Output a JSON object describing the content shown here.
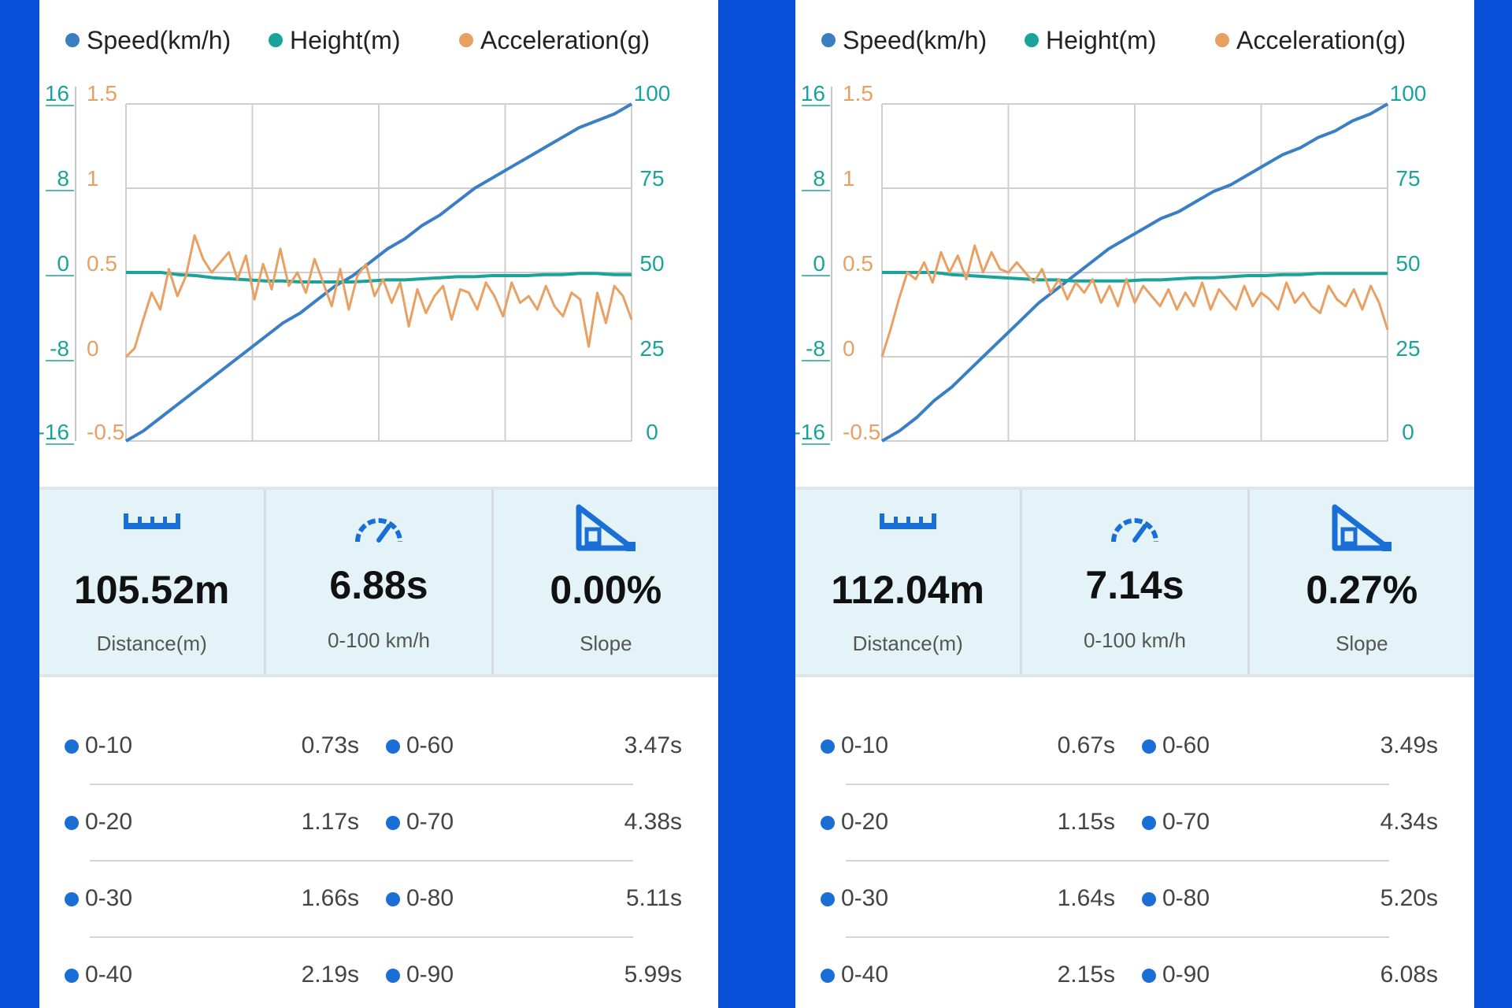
{
  "colors": {
    "background": "#0a4fd8",
    "speed": "#3a7fc4",
    "height": "#1aa39a",
    "acceleration": "#e8a063",
    "icon": "#1a6fd6",
    "stats_bg": "#e3f3f7"
  },
  "panels": [
    {
      "legend": {
        "speed": "Speed(km/h)",
        "height": "Height(m)",
        "acceleration": "Acceleration(g)"
      },
      "stats": {
        "distance_value": "105.52m",
        "distance_label": "Distance(m)",
        "time_value": "6.88s",
        "time_label": "0-100 km/h",
        "slope_value": "0.00%",
        "slope_label": "Slope"
      },
      "splits": [
        {
          "left_range": "0-10",
          "left_time": "0.73s",
          "right_range": "0-60",
          "right_time": "3.47s"
        },
        {
          "left_range": "0-20",
          "left_time": "1.17s",
          "right_range": "0-70",
          "right_time": "4.38s"
        },
        {
          "left_range": "0-30",
          "left_time": "1.66s",
          "right_range": "0-80",
          "right_time": "5.11s"
        },
        {
          "left_range": "0-40",
          "left_time": "2.19s",
          "right_range": "0-90",
          "right_time": "5.99s"
        }
      ]
    },
    {
      "legend": {
        "speed": "Speed(km/h)",
        "height": "Height(m)",
        "acceleration": "Acceleration(g)"
      },
      "stats": {
        "distance_value": "112.04m",
        "distance_label": "Distance(m)",
        "time_value": "7.14s",
        "time_label": "0-100 km/h",
        "slope_value": "0.27%",
        "slope_label": "Slope"
      },
      "splits": [
        {
          "left_range": "0-10",
          "left_time": "0.67s",
          "right_range": "0-60",
          "right_time": "3.49s"
        },
        {
          "left_range": "0-20",
          "left_time": "1.15s",
          "right_range": "0-70",
          "right_time": "4.34s"
        },
        {
          "left_range": "0-30",
          "left_time": "1.64s",
          "right_range": "0-80",
          "right_time": "5.20s"
        },
        {
          "left_range": "0-40",
          "left_time": "2.15s",
          "right_range": "0-90",
          "right_time": "6.08s"
        }
      ]
    }
  ],
  "chart_data": [
    {
      "type": "line",
      "series": [
        {
          "name": "Speed(km/h)",
          "axis": "right",
          "color": "#3a7fc4",
          "values": [
            0,
            3,
            7,
            11,
            15,
            19,
            23,
            27,
            31,
            35,
            38,
            42,
            46,
            49,
            53,
            57,
            60,
            64,
            67,
            71,
            75,
            78,
            81,
            84,
            87,
            90,
            93,
            95,
            97,
            100
          ]
        },
        {
          "name": "Height(m)",
          "axis": "left-outer",
          "color": "#1aa39a",
          "values": [
            0,
            0,
            0,
            -0.2,
            -0.3,
            -0.5,
            -0.6,
            -0.7,
            -0.8,
            -0.8,
            -0.9,
            -0.9,
            -0.9,
            -0.9,
            -0.8,
            -0.7,
            -0.7,
            -0.6,
            -0.5,
            -0.4,
            -0.4,
            -0.3,
            -0.3,
            -0.3,
            -0.2,
            -0.2,
            -0.1,
            -0.1,
            -0.2,
            -0.2
          ]
        },
        {
          "name": "Acceleration(g)",
          "axis": "left-inner",
          "color": "#e8a063",
          "values": [
            0,
            0.05,
            0.22,
            0.38,
            0.28,
            0.52,
            0.36,
            0.48,
            0.72,
            0.58,
            0.5,
            0.56,
            0.62,
            0.46,
            0.6,
            0.34,
            0.55,
            0.4,
            0.64,
            0.42,
            0.5,
            0.38,
            0.58,
            0.44,
            0.3,
            0.52,
            0.28,
            0.48,
            0.55,
            0.36,
            0.46,
            0.32,
            0.44,
            0.18,
            0.4,
            0.26,
            0.36,
            0.42,
            0.22,
            0.4,
            0.38,
            0.28,
            0.44,
            0.36,
            0.24,
            0.44,
            0.32,
            0.36,
            0.28,
            0.42,
            0.3,
            0.24,
            0.38,
            0.34,
            0.06,
            0.38,
            0.2,
            0.42,
            0.36,
            0.22
          ]
        }
      ],
      "x_count": 30,
      "y_left_outer": {
        "ticks": [
          "16",
          "8",
          "0",
          "-8",
          "-16"
        ],
        "range": [
          -16,
          16
        ]
      },
      "y_left_inner": {
        "ticks": [
          "1.5",
          "1",
          "0.5",
          "0",
          "-0.5"
        ],
        "range": [
          -0.5,
          1.5
        ]
      },
      "y_right": {
        "ticks": [
          "100",
          "75",
          "50",
          "25",
          "0"
        ],
        "range": [
          0,
          100
        ]
      },
      "grid": true,
      "legend_position": "top"
    },
    {
      "type": "line",
      "series": [
        {
          "name": "Speed(km/h)",
          "axis": "right",
          "color": "#3a7fc4",
          "values": [
            0,
            3,
            7,
            12,
            16,
            21,
            26,
            31,
            36,
            41,
            45,
            49,
            53,
            57,
            60,
            63,
            66,
            68,
            71,
            74,
            76,
            79,
            82,
            85,
            87,
            90,
            92,
            95,
            97,
            100
          ]
        },
        {
          "name": "Height(m)",
          "axis": "left-outer",
          "color": "#1aa39a",
          "values": [
            0,
            0,
            0,
            0,
            -0.2,
            -0.3,
            -0.4,
            -0.5,
            -0.6,
            -0.7,
            -0.7,
            -0.8,
            -0.8,
            -0.8,
            -0.8,
            -0.7,
            -0.7,
            -0.6,
            -0.5,
            -0.5,
            -0.4,
            -0.3,
            -0.3,
            -0.2,
            -0.2,
            -0.1,
            -0.1,
            -0.1,
            -0.1,
            -0.1
          ]
        },
        {
          "name": "Acceleration(g)",
          "axis": "left-inner",
          "color": "#e8a063",
          "values": [
            0,
            0.16,
            0.34,
            0.5,
            0.46,
            0.56,
            0.44,
            0.62,
            0.5,
            0.6,
            0.46,
            0.66,
            0.5,
            0.62,
            0.52,
            0.5,
            0.56,
            0.5,
            0.44,
            0.52,
            0.38,
            0.46,
            0.34,
            0.44,
            0.38,
            0.46,
            0.32,
            0.42,
            0.3,
            0.46,
            0.32,
            0.42,
            0.36,
            0.3,
            0.4,
            0.28,
            0.38,
            0.3,
            0.44,
            0.28,
            0.4,
            0.34,
            0.28,
            0.42,
            0.3,
            0.38,
            0.34,
            0.28,
            0.44,
            0.32,
            0.38,
            0.3,
            0.26,
            0.42,
            0.34,
            0.3,
            0.4,
            0.28,
            0.42,
            0.32,
            0.16
          ]
        }
      ],
      "x_count": 30,
      "y_left_outer": {
        "ticks": [
          "16",
          "8",
          "0",
          "-8",
          "-16"
        ],
        "range": [
          -16,
          16
        ]
      },
      "y_left_inner": {
        "ticks": [
          "1.5",
          "1",
          "0.5",
          "0",
          "-0.5"
        ],
        "range": [
          -0.5,
          1.5
        ]
      },
      "y_right": {
        "ticks": [
          "100",
          "75",
          "50",
          "25",
          "0"
        ],
        "range": [
          0,
          100
        ]
      },
      "grid": true,
      "legend_position": "top"
    }
  ]
}
